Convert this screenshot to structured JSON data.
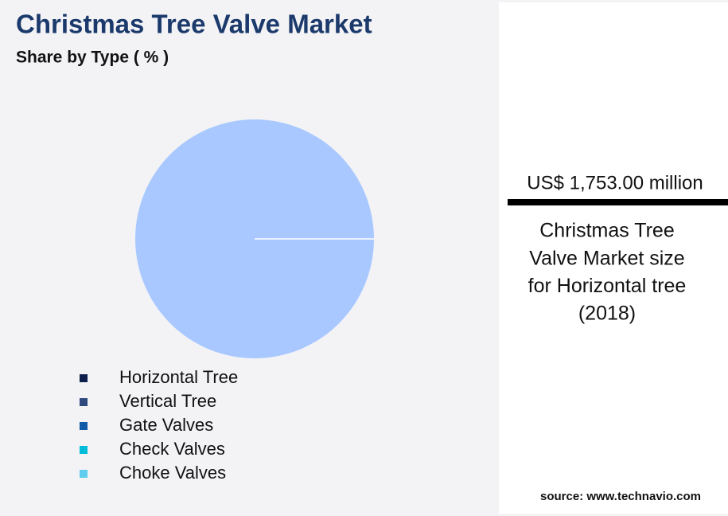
{
  "chart_data": {
    "type": "pie",
    "title": "Christmas Tree Valve Market",
    "subtitle": "Share by Type ( % )",
    "categories": [
      "Horizontal Tree",
      "Vertical Tree",
      "Gate Valves",
      "Check Valves",
      "Choke Valves"
    ],
    "values": [
      100,
      0,
      0,
      0,
      0
    ],
    "colors": [
      "#0d1f4a",
      "#2e4a7d",
      "#0f5aa8",
      "#00bcd8",
      "#5fcdee"
    ],
    "slice_color": "#a8c8ff"
  },
  "panel": {
    "value": "US$ 1,753.00 million",
    "description": [
      "Christmas Tree",
      "Valve Market size",
      "for Horizontal tree",
      "(2018)"
    ],
    "source": "source: www.technavio.com"
  }
}
